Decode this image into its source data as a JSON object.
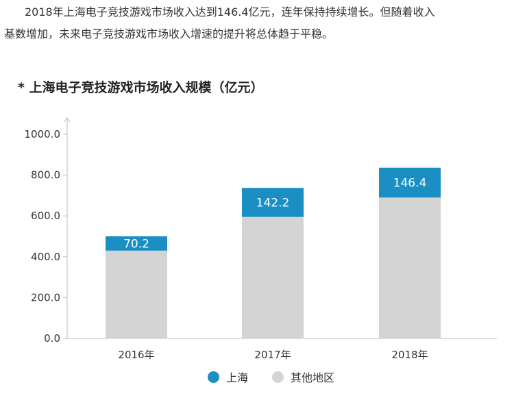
{
  "intro": {
    "line1": "2018年上海电子竞技游戏市场收入达到146.4亿元，连年保持持续增长。但随着收入",
    "line2": "基数增加，未来电子竞技游戏市场收入增速的提升将总体趋于平稳。"
  },
  "chart_data": {
    "type": "bar",
    "stacked": true,
    "title": "* 上海电子竞技游戏市场收入规模（亿元）",
    "xlabel": "",
    "ylabel": "",
    "categories": [
      "2016年",
      "2017年",
      "2018年"
    ],
    "series": [
      {
        "name": "其他地区",
        "color": "#d4d4d4",
        "values": [
          430,
          595,
          690
        ],
        "data_labels": false
      },
      {
        "name": "上海",
        "color": "#1a8fc3",
        "values": [
          70.2,
          142.2,
          146.4
        ],
        "data_labels": true
      }
    ],
    "ylim": [
      0,
      1000
    ],
    "yticks": [
      "0.0",
      "200.0",
      "400.0",
      "600.0",
      "800.0",
      "1000.0"
    ],
    "grid": false,
    "legend_position": "bottom",
    "legend": [
      {
        "label": "上海",
        "color": "#1a8fc3"
      },
      {
        "label": "其他地区",
        "color": "#d4d4d4"
      }
    ]
  }
}
